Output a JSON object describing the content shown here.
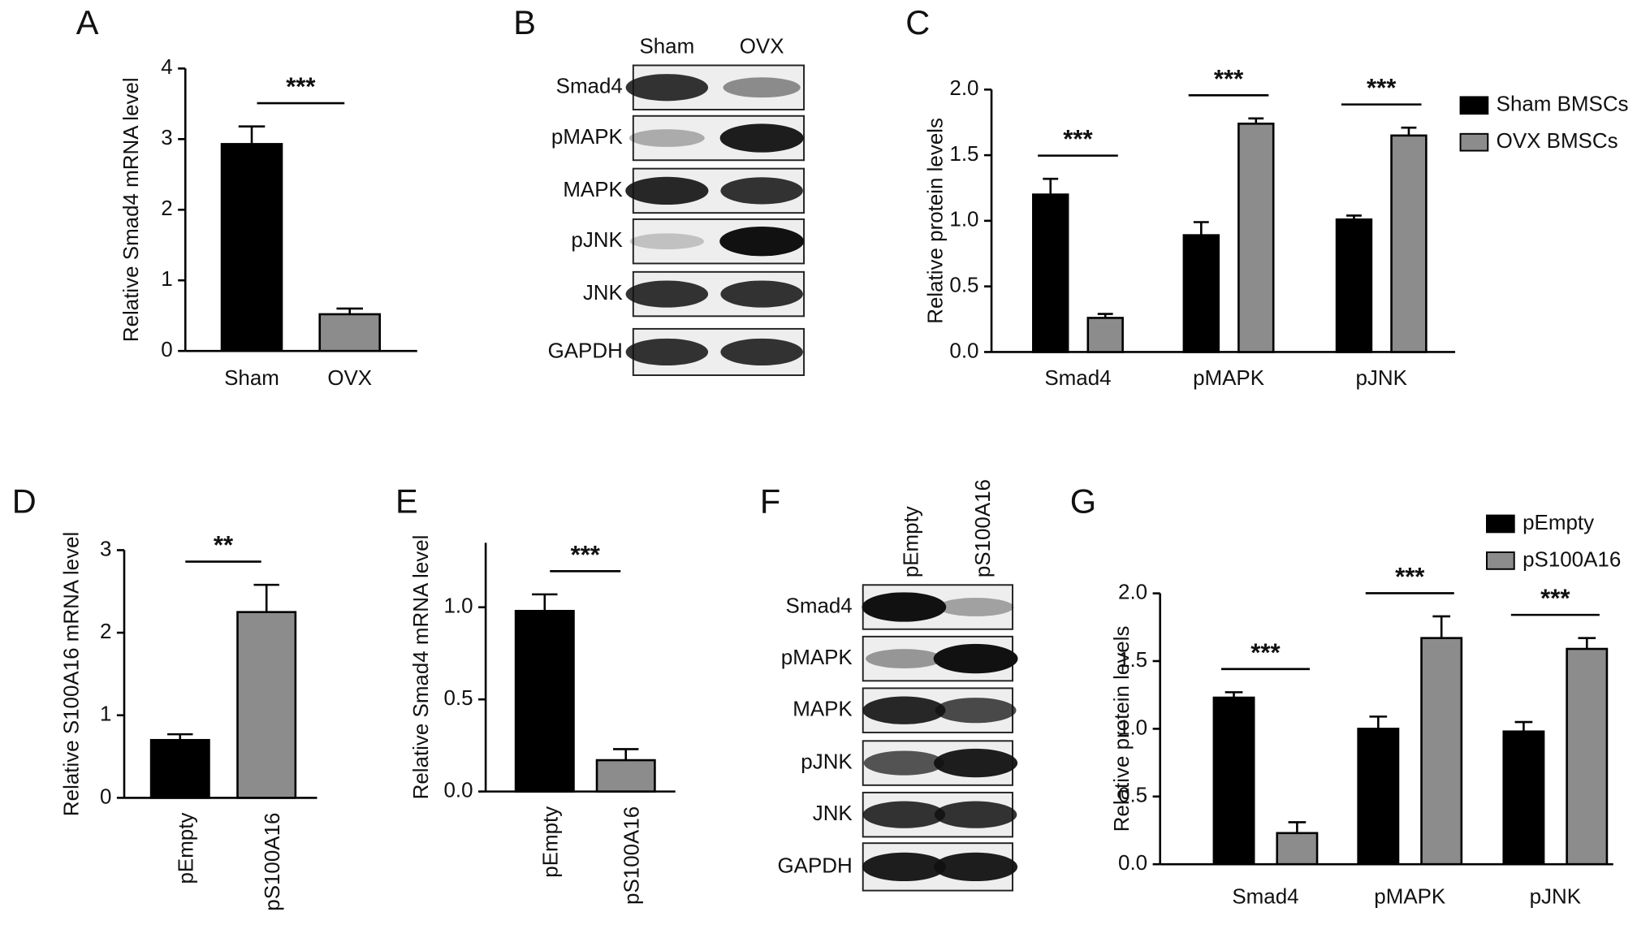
{
  "chart_data": [
    {
      "panel": "A",
      "type": "bar",
      "ylabel": "Relative Smad4 mRNA level",
      "categories": [
        "Sham",
        "OVX"
      ],
      "values": [
        2.93,
        0.52
      ],
      "errors": [
        0.25,
        0.08
      ],
      "colors": [
        "#000000",
        "#8c8c8c"
      ],
      "ylim": [
        0,
        4
      ],
      "yticks": [
        0,
        1,
        2,
        3,
        4
      ],
      "significance": [
        "***"
      ]
    },
    {
      "panel": "C",
      "type": "bar",
      "ylabel": "Relative protein levels",
      "categories": [
        "Smad4",
        "pMAPK",
        "pJNK"
      ],
      "series": [
        {
          "name": "Sham BMSCs",
          "color": "#000000",
          "values": [
            1.2,
            0.89,
            1.01
          ],
          "errors": [
            0.12,
            0.1,
            0.03
          ]
        },
        {
          "name": "OVX BMSCs",
          "color": "#8c8c8c",
          "values": [
            0.26,
            1.74,
            1.65
          ],
          "errors": [
            0.03,
            0.04,
            0.06
          ]
        }
      ],
      "ylim": [
        0,
        2
      ],
      "yticks": [
        {
          "value": 0,
          "label": "0.0"
        },
        {
          "value": 0.5,
          "label": "0.5"
        },
        {
          "value": 1,
          "label": "1.0"
        },
        {
          "value": 1.5,
          "label": "1.5"
        },
        {
          "value": 2,
          "label": "2.0"
        }
      ],
      "significance": [
        "***",
        "***",
        "***"
      ]
    },
    {
      "panel": "D",
      "type": "bar",
      "ylabel": "Relative S100A16 mRNA level",
      "categories": [
        "pEmpty",
        "pS100A16"
      ],
      "values": [
        0.7,
        2.25
      ],
      "errors": [
        0.07,
        0.33
      ],
      "colors": [
        "#000000",
        "#8c8c8c"
      ],
      "ylim": [
        0,
        3
      ],
      "yticks": [
        0,
        1,
        2,
        3
      ],
      "significance": [
        "**"
      ],
      "rotate_xlabels": true
    },
    {
      "panel": "E",
      "type": "bar",
      "ylabel": "Relative Smad4 mRNA level",
      "categories": [
        "pEmpty",
        "pS100A16"
      ],
      "values": [
        0.98,
        0.17
      ],
      "errors": [
        0.09,
        0.06
      ],
      "colors": [
        "#000000",
        "#8c8c8c"
      ],
      "ylim": [
        0,
        1.35
      ],
      "yticks": [
        {
          "value": 0,
          "label": "0.0"
        },
        {
          "value": 0.5,
          "label": "0.5"
        },
        {
          "value": 1,
          "label": "1.0"
        }
      ],
      "significance": [
        "***"
      ],
      "rotate_xlabels": true
    },
    {
      "panel": "G",
      "type": "bar",
      "ylabel": "Relative protein levels",
      "categories": [
        "Smad4",
        "pMAPK",
        "pJNK"
      ],
      "series": [
        {
          "name": "pEmpty",
          "color": "#000000",
          "values": [
            1.23,
            1.0,
            0.98
          ],
          "errors": [
            0.04,
            0.09,
            0.07
          ]
        },
        {
          "name": "pS100A16",
          "color": "#8c8c8c",
          "values": [
            0.23,
            1.67,
            1.59
          ],
          "errors": [
            0.08,
            0.16,
            0.08
          ]
        }
      ],
      "ylim": [
        0,
        2
      ],
      "yticks": [
        {
          "value": 0,
          "label": "0.0"
        },
        {
          "value": 0.5,
          "label": "0.5"
        },
        {
          "value": 1,
          "label": "1.0"
        },
        {
          "value": 1.5,
          "label": "1.5"
        },
        {
          "value": 2,
          "label": "2.0"
        }
      ],
      "significance": [
        "***",
        "***",
        "***"
      ]
    }
  ],
  "blots": [
    {
      "panel": "B",
      "columns": [
        "Sham",
        "OVX"
      ],
      "rows": [
        "Smad4",
        "pMAPK",
        "MAPK",
        "pJNK",
        "JNK",
        "GAPDH"
      ]
    },
    {
      "panel": "F",
      "columns": [
        "pEmpty",
        "pS100A16"
      ],
      "rows": [
        "Smad4",
        "pMAPK",
        "MAPK",
        "pJNK",
        "JNK",
        "GAPDH"
      ]
    }
  ]
}
